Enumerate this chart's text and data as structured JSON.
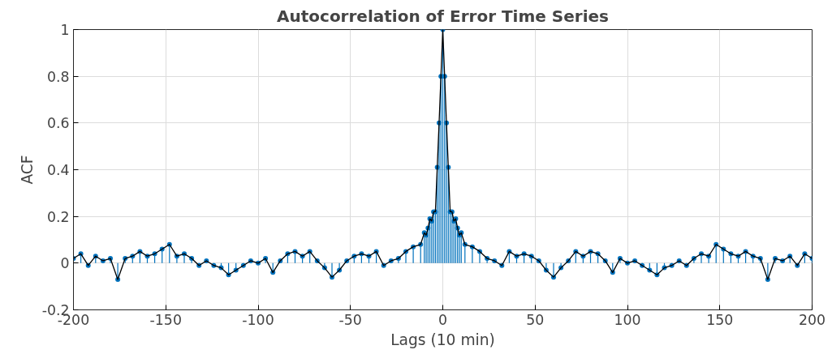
{
  "chart_data": {
    "type": "lollipop",
    "title": "Autocorrelation of Error Time Series",
    "xlabel": "Lags (10 min)",
    "ylabel": "ACF",
    "x": [
      -200,
      -196,
      -192,
      -188,
      -184,
      -180,
      -176,
      -172,
      -168,
      -164,
      -160,
      -156,
      -152,
      -148,
      -144,
      -140,
      -136,
      -132,
      -128,
      -124,
      -120,
      -116,
      -112,
      -108,
      -104,
      -100,
      -96,
      -92,
      -88,
      -84,
      -80,
      -76,
      -72,
      -68,
      -64,
      -60,
      -56,
      -52,
      -48,
      -44,
      -40,
      -36,
      -32,
      -28,
      -24,
      -20,
      -16,
      -12,
      -10,
      -9,
      -8,
      -7,
      -6,
      -5,
      -4,
      -3,
      -2,
      -1,
      0,
      1,
      2,
      3,
      4,
      5,
      6,
      7,
      8,
      9,
      10,
      12,
      16,
      20,
      24,
      28,
      32,
      36,
      40,
      44,
      48,
      52,
      56,
      60,
      64,
      68,
      72,
      76,
      80,
      84,
      88,
      92,
      96,
      100,
      104,
      108,
      112,
      116,
      120,
      124,
      128,
      132,
      136,
      140,
      144,
      148,
      152,
      156,
      160,
      164,
      168,
      172,
      176,
      180,
      184,
      188,
      192,
      196,
      200
    ],
    "series": [
      {
        "type": "line",
        "marker": "none",
        "color": "#000000",
        "values": [
          0.02,
          0.04,
          -0.01,
          0.03,
          0.01,
          0.02,
          -0.07,
          0.02,
          0.03,
          0.05,
          0.03,
          0.04,
          0.06,
          0.08,
          0.03,
          0.04,
          0.02,
          -0.01,
          0.01,
          -0.01,
          -0.02,
          -0.05,
          -0.03,
          -0.01,
          0.01,
          0.0,
          0.02,
          -0.04,
          0.01,
          0.04,
          0.05,
          0.03,
          0.05,
          0.01,
          -0.02,
          -0.06,
          -0.03,
          0.01,
          0.03,
          0.04,
          0.03,
          0.05,
          -0.01,
          0.01,
          0.02,
          0.05,
          0.07,
          0.08,
          0.13,
          0.12,
          0.15,
          0.19,
          0.18,
          0.22,
          0.22,
          0.41,
          0.6,
          0.8,
          1,
          0.8,
          0.6,
          0.41,
          0.22,
          0.22,
          0.18,
          0.19,
          0.15,
          0.12,
          0.13,
          0.08,
          0.07,
          0.05,
          0.02,
          0.01,
          -0.01,
          0.05,
          0.03,
          0.04,
          0.03,
          0.01,
          -0.03,
          -0.06,
          -0.02,
          0.01,
          0.05,
          0.03,
          0.05,
          0.04,
          0.01,
          -0.04,
          0.02,
          0.0,
          0.01,
          -0.01,
          -0.03,
          -0.05,
          -0.02,
          -0.01,
          0.01,
          -0.01,
          0.02,
          0.04,
          0.03,
          0.08,
          0.06,
          0.04,
          0.03,
          0.05,
          0.03,
          0.02,
          -0.07,
          0.02,
          0.01,
          0.03,
          -0.01,
          0.04,
          0.02
        ]
      },
      {
        "color": "#0072bd",
        "values": [
          0.02,
          0.04,
          -0.01,
          0.03,
          0.01,
          0.02,
          -0.07,
          0.02,
          0.03,
          0.05,
          0.03,
          0.04,
          0.06,
          0.08,
          0.03,
          0.04,
          0.02,
          -0.01,
          0.01,
          -0.01,
          -0.02,
          -0.05,
          -0.03,
          -0.01,
          0.01,
          0.0,
          0.02,
          -0.04,
          0.01,
          0.04,
          0.05,
          0.03,
          0.05,
          0.01,
          -0.02,
          -0.06,
          -0.03,
          0.01,
          0.03,
          0.04,
          0.03,
          0.05,
          -0.01,
          0.01,
          0.02,
          0.05,
          0.07,
          0.08,
          0.13,
          0.12,
          0.15,
          0.19,
          0.18,
          0.22,
          0.22,
          0.41,
          0.6,
          0.8,
          1,
          0.8,
          0.6,
          0.41,
          0.22,
          0.22,
          0.18,
          0.19,
          0.15,
          0.12,
          0.13,
          0.08,
          0.07,
          0.05,
          0.02,
          0.01,
          -0.01,
          0.05,
          0.03,
          0.04,
          0.03,
          0.01,
          -0.03,
          -0.06,
          -0.02,
          0.01,
          0.05,
          0.03,
          0.05,
          0.04,
          0.01,
          -0.04,
          0.02,
          0.0,
          0.01,
          -0.01,
          -0.03,
          -0.05,
          -0.02,
          -0.01,
          0.01,
          -0.01,
          0.02,
          0.04,
          0.03,
          0.08,
          0.06,
          0.04,
          0.03,
          0.05,
          0.03,
          0.02,
          -0.07,
          0.02,
          0.01,
          0.03,
          -0.01,
          0.04,
          0.02
        ]
      }
    ],
    "marker": "circle",
    "xlim": [
      -200,
      200
    ],
    "xticks": [
      -200,
      -150,
      -100,
      -50,
      0,
      50,
      100,
      150,
      200
    ],
    "ylim": [
      -0.2,
      1
    ],
    "yticks": [
      -0.2,
      0,
      0.2,
      0.4,
      0.6,
      0.8,
      1
    ],
    "grid": true
  }
}
